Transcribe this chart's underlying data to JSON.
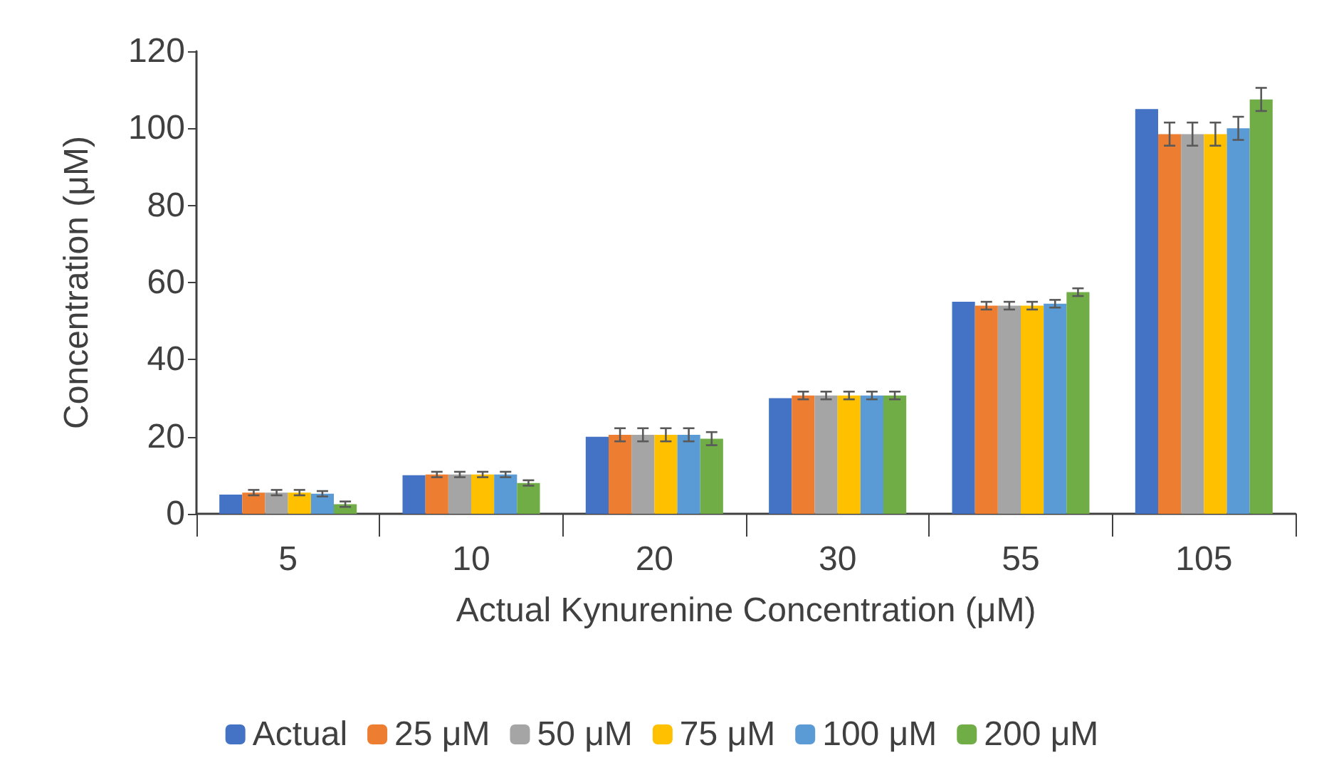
{
  "chart_data": {
    "type": "bar",
    "xlabel": "Actual Kynurenine Concentration (μM)",
    "ylabel": "Concentration (μM)",
    "categories": [
      "5",
      "10",
      "20",
      "30",
      "55",
      "105"
    ],
    "series": [
      {
        "name": "Actual",
        "color": "#4472c4",
        "values": [
          5,
          10,
          20,
          30,
          55,
          105
        ]
      },
      {
        "name": "25 μM",
        "color": "#ed7d31",
        "values": [
          5.5,
          10.2,
          20.5,
          30.7,
          54,
          98.5
        ],
        "errors": [
          0.7,
          0.7,
          1.7,
          1,
          1,
          3
        ]
      },
      {
        "name": "50 μM",
        "color": "#a5a5a5",
        "values": [
          5.5,
          10.2,
          20.5,
          30.7,
          54,
          98.5
        ],
        "errors": [
          0.7,
          0.7,
          1.7,
          1,
          1,
          3
        ]
      },
      {
        "name": "75 μM",
        "color": "#ffc000",
        "values": [
          5.5,
          10.2,
          20.5,
          30.7,
          54,
          98.5
        ],
        "errors": [
          0.7,
          0.7,
          1.7,
          1,
          1,
          3
        ]
      },
      {
        "name": "100 μM",
        "color": "#5b9bd5",
        "values": [
          5.2,
          10.2,
          20.5,
          30.7,
          54.5,
          100
        ],
        "errors": [
          0.7,
          0.7,
          1.7,
          1,
          1,
          3
        ]
      },
      {
        "name": "200 μM",
        "color": "#70ad47",
        "values": [
          2.5,
          8,
          19.5,
          30.7,
          57.5,
          107.5
        ],
        "errors": [
          0.7,
          0.7,
          1.7,
          1,
          1,
          3
        ]
      }
    ],
    "ylim": [
      0,
      120
    ],
    "yticks": [
      0,
      20,
      40,
      60,
      80,
      100,
      120
    ],
    "grid": false,
    "legend": "bottom"
  }
}
